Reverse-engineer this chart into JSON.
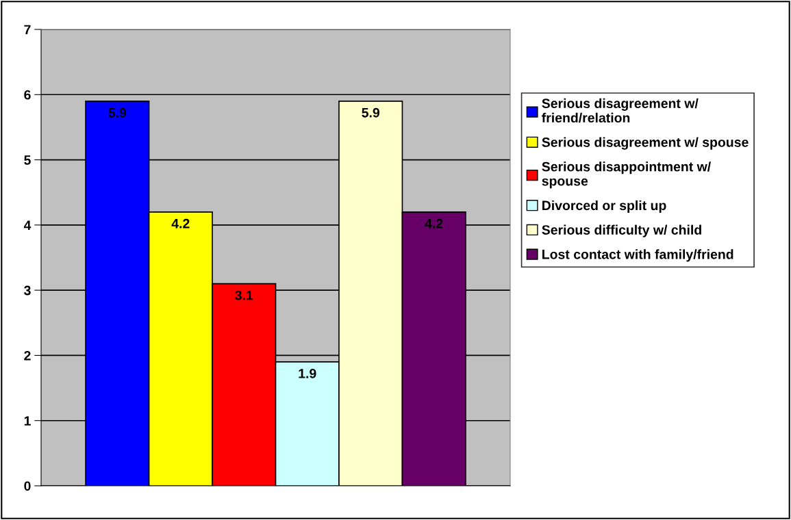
{
  "chart_data": {
    "type": "bar",
    "categories": [
      null
    ],
    "series": [
      {
        "name": "Serious disagreement w/ friend/relation",
        "color": "#0000ff",
        "values": [
          5.9
        ]
      },
      {
        "name": "Serious disagreement w/ spouse",
        "color": "#ffff00",
        "values": [
          4.2
        ]
      },
      {
        "name": "Serious disappointment w/ spouse",
        "color": "#ff0000",
        "values": [
          3.1
        ]
      },
      {
        "name": "Divorced or split up",
        "color": "#ccffff",
        "values": [
          1.9
        ]
      },
      {
        "name": "Serious difficulty w/ child",
        "color": "#ffffcc",
        "values": [
          5.9
        ]
      },
      {
        "name": "Lost contact with family/friend",
        "color": "#660066",
        "values": [
          4.2
        ]
      }
    ],
    "ylim": [
      0,
      7
    ],
    "yticks": [
      0,
      1,
      2,
      3,
      4,
      5,
      6,
      7
    ],
    "grid": "y",
    "legend": "right",
    "data_labels": true
  }
}
